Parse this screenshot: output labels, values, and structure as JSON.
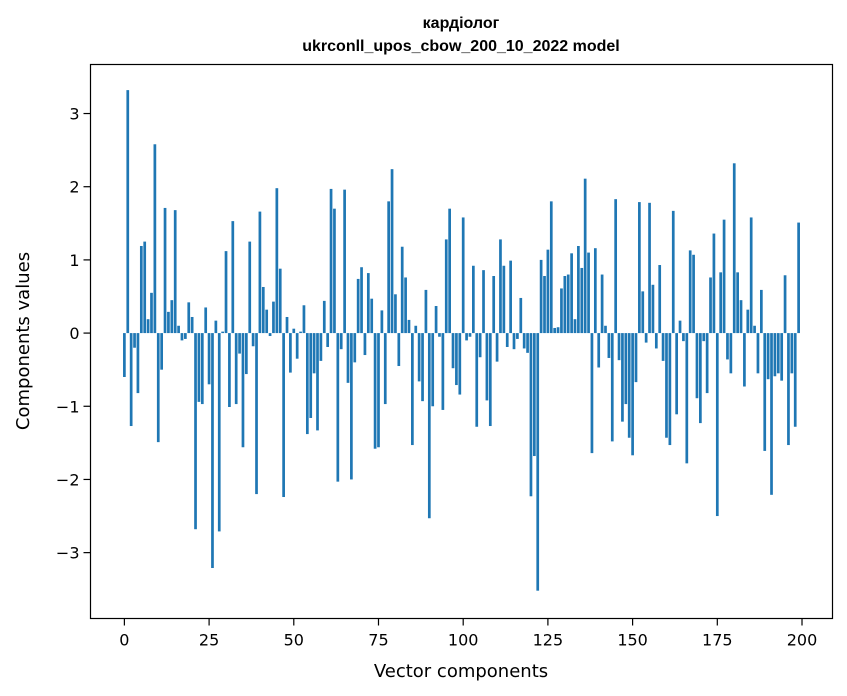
{
  "chart_data": {
    "type": "bar",
    "title_line1": "кардіолог",
    "title_line2": "ukrconll_upos_cbow_200_10_2022 model",
    "xlabel": "Vector components",
    "ylabel": "Components values",
    "xlim": [
      -10,
      209
    ],
    "ylim": [
      -3.9,
      3.67
    ],
    "x_ticks": [
      0,
      25,
      50,
      75,
      100,
      125,
      150,
      175,
      200
    ],
    "y_ticks": [
      -3,
      -2,
      -1,
      0,
      1,
      2,
      3
    ],
    "bar_color": "#1f77b4",
    "grid": false,
    "values": [
      -0.6,
      3.32,
      -1.27,
      -0.2,
      -0.82,
      1.19,
      1.25,
      0.19,
      0.55,
      2.58,
      -1.49,
      -0.5,
      1.71,
      0.29,
      0.45,
      1.68,
      0.1,
      -0.1,
      -0.08,
      0.42,
      0.22,
      -2.68,
      -0.94,
      -0.97,
      0.35,
      -0.7,
      -3.21,
      0.17,
      -2.71,
      0.02,
      1.12,
      -1.01,
      1.53,
      -0.97,
      -0.28,
      -1.56,
      -0.56,
      1.25,
      -0.18,
      -2.2,
      1.66,
      0.63,
      0.32,
      -0.04,
      0.43,
      1.98,
      0.88,
      -2.24,
      0.22,
      -0.54,
      0.06,
      -0.35,
      0.02,
      0.38,
      -1.38,
      -1.16,
      -0.55,
      -1.33,
      -0.38,
      0.44,
      -0.19,
      1.97,
      1.7,
      -2.03,
      -0.22,
      1.96,
      -0.68,
      -2.0,
      -0.4,
      0.74,
      0.9,
      -0.3,
      0.82,
      0.47,
      -1.58,
      -1.56,
      0.31,
      -0.97,
      1.8,
      2.24,
      0.53,
      -0.45,
      1.18,
      0.76,
      0.18,
      -1.53,
      0.1,
      -0.66,
      -0.93,
      0.59,
      -2.53,
      -1.0,
      0.37,
      -0.05,
      -1.05,
      1.28,
      1.7,
      -0.48,
      -0.71,
      -0.84,
      1.58,
      -0.1,
      -0.05,
      0.92,
      -1.28,
      -0.33,
      0.86,
      -0.92,
      -1.27,
      0.78,
      -0.39,
      1.28,
      0.92,
      -0.19,
      0.99,
      -0.22,
      -0.08,
      0.48,
      -0.21,
      -0.27,
      -2.23,
      -1.68,
      -3.52,
      1.0,
      0.78,
      1.14,
      1.8,
      0.07,
      0.08,
      0.61,
      0.78,
      0.8,
      1.09,
      0.19,
      1.19,
      0.89,
      2.11,
      1.1,
      -1.64,
      1.16,
      -0.47,
      0.8,
      0.1,
      -0.34,
      -1.48,
      1.83,
      -0.37,
      -1.21,
      -0.97,
      -1.43,
      -1.67,
      -0.67,
      1.79,
      0.57,
      -0.13,
      1.78,
      0.66,
      -0.21,
      0.93,
      -0.38,
      -1.43,
      -1.53,
      1.67,
      -1.11,
      0.17,
      -0.11,
      -1.78,
      1.13,
      1.07,
      -0.89,
      -1.23,
      -0.11,
      -0.82,
      0.76,
      1.36,
      -2.5,
      0.83,
      1.55,
      -0.36,
      -0.55,
      2.32,
      0.83,
      0.45,
      -0.73,
      0.32,
      1.58,
      0.1,
      -0.55,
      0.59,
      -1.61,
      -0.63,
      -2.21,
      -0.59,
      -0.55,
      -0.65,
      0.79,
      -1.53,
      -0.55,
      -1.28,
      1.51
    ]
  }
}
